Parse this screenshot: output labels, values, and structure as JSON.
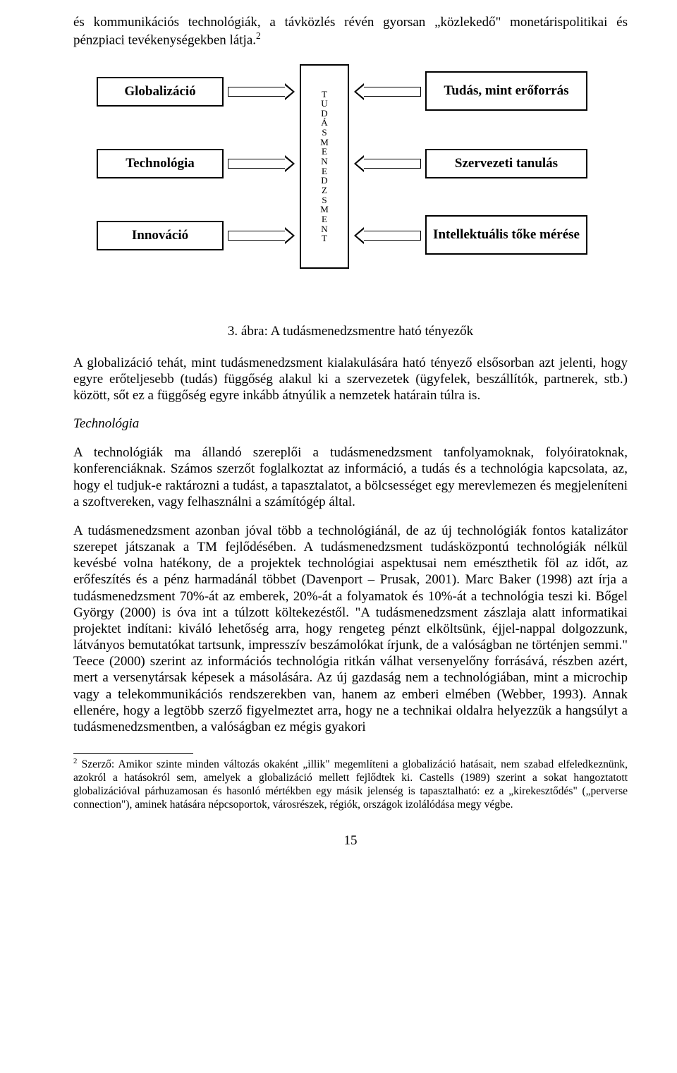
{
  "p_intro": "és kommunikációs technológiák, a távközlés révén gyorsan „közlekedő\" monetárispolitikai és pénzpiaci tevékenységekben látja.",
  "superscript_2": "2",
  "diagram": {
    "left": [
      "Globalizáció",
      "Technológia",
      "Innováció"
    ],
    "center_letters": [
      "T",
      "U",
      "D",
      "Á",
      "S",
      "M",
      "E",
      "N",
      "E",
      "D",
      "Z",
      "S",
      "M",
      "E",
      "N",
      "T"
    ],
    "right": [
      "Tudás, mint erőforrás",
      "Szervezeti tanulás",
      "Intellektuális tőke mérése"
    ]
  },
  "caption": "3. ábra: A tudásmenedzsmentre ható tényezők",
  "p1": "A globalizáció tehát, mint tudásmenedzsment kialakulására ható tényező elsősorban azt jelenti, hogy egyre erőteljesebb (tudás) függőség alakul ki a szervezetek (ügyfelek, beszállítók, partnerek, stb.) között, sőt ez a függőség egyre inkább átnyúlik a nemzetek határain túlra is.",
  "h1": "Technológia",
  "p2": "A technológiák ma állandó szereplői a tudásmenedzsment tanfolyamoknak, folyóiratoknak, konferenciáknak. Számos szerzőt foglalkoztat az információ, a tudás és a technológia kapcsolata, az, hogy el tudjuk-e raktározni a tudást, a tapasztalatot, a bölcsességet egy merevlemezen és megjeleníteni a szoftvereken, vagy felhasználni a számítógép által.",
  "p3": "A tudásmenedzsment azonban jóval több a technológiánál, de az új technológiák fontos katalizátor szerepet játszanak a TM fejlődésében. A tudásmenedzsment tudásközpontú technológiák nélkül kevésbé volna hatékony, de a projektek technológiai aspektusai nem emészthetik föl az időt, az erőfeszítés és a pénz harmadánál többet (Davenport – Prusak, 2001). Marc Baker (1998) azt írja a tudásmenedzsment 70%-át az emberek, 20%-át a folyamatok és 10%-át a technológia teszi ki. Bőgel György (2000) is óva int a túlzott költekezéstől. \"A tudásmenedzsment zászlaja alatt informatikai projektet indítani: kiváló lehetőség arra, hogy rengeteg pénzt elköltsünk, éjjel-nappal dolgozzunk, látványos bemutatókat tartsunk, impresszív beszámolókat írjunk, de a valóságban ne történjen semmi.\" Teece (2000) szerint az információs technológia ritkán válhat versenyelőny forrásává, részben azért, mert a versenytársak képesek a másolására. Az új gazdaság nem a technológiában, mint a microchip vagy a telekommunikációs rendszerekben van, hanem az emberi elmében (Webber, 1993). Annak ellenére, hogy a legtöbb szerző figyelmeztet arra, hogy ne a technikai oldalra helyezzük a hangsúlyt a tudásmenedzsmentben, a valóságban ez mégis gyakori",
  "footnote_num": "2",
  "footnote": " Szerző: Amikor szinte minden változás okaként „illik\" megemlíteni a globalizáció hatásait, nem szabad elfeledkeznünk, azokról a hatásokról sem, amelyek a globalizáció mellett fejlődtek ki. Castells (1989) szerint a sokat hangoztatott globalizációval párhuzamosan és hasonló mértékben egy másik jelenség is tapasztalható: ez a „kirekesztődés\" („perverse connection\"), aminek hatására népcsoportok, városrészek, régiók, országok izolálódása megy végbe.",
  "page_number": "15"
}
